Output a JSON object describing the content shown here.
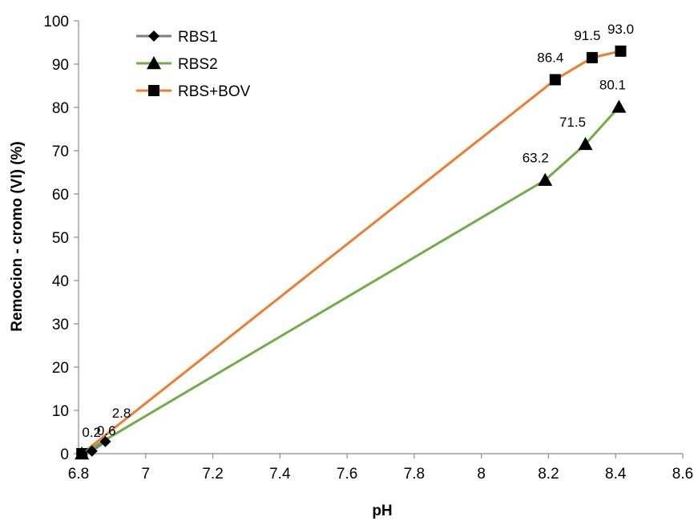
{
  "chart_data": {
    "type": "line",
    "title": "",
    "xlabel": "pH",
    "ylabel": "Remocion - cromo (VI) (%)",
    "xlim": [
      6.8,
      8.6
    ],
    "ylim": [
      0,
      100
    ],
    "x_ticks": [
      6.8,
      7,
      7.2,
      7.4,
      7.6,
      7.8,
      8,
      8.2,
      8.4,
      8.6
    ],
    "x_tick_labels": [
      "6.8",
      "7",
      "7.2",
      "7.4",
      "7.6",
      "7.8",
      "8",
      "8.2",
      "8.4",
      "8.6"
    ],
    "y_ticks": [
      0,
      10,
      20,
      30,
      40,
      50,
      60,
      70,
      80,
      90,
      100
    ],
    "y_tick_labels": [
      "0",
      "10",
      "20",
      "30",
      "40",
      "50",
      "60",
      "70",
      "80",
      "90",
      "100"
    ],
    "grid": false,
    "legend_position": "top-left",
    "series": [
      {
        "name": "RBS1",
        "color": "#7f7f7f",
        "marker": "diamond",
        "x": [
          6.81,
          6.84,
          6.88
        ],
        "y": [
          0.2,
          0.6,
          2.8
        ],
        "labels": [
          "0.2",
          "0.6",
          "2.8"
        ]
      },
      {
        "name": "RBS2",
        "color": "#70ad47",
        "marker": "triangle",
        "x": [
          6.81,
          8.19,
          8.31,
          8.41
        ],
        "y": [
          0.0,
          63.2,
          71.5,
          80.1
        ],
        "labels": [
          "",
          "63.2",
          "71.5",
          "80.1"
        ]
      },
      {
        "name": "RBS+BOV",
        "color": "#ed7d31",
        "marker": "square",
        "x": [
          6.81,
          8.22,
          8.33,
          8.415
        ],
        "y": [
          0.0,
          86.4,
          91.5,
          93.0
        ],
        "labels": [
          "",
          "86.4",
          "91.5",
          "93.0"
        ]
      }
    ]
  }
}
